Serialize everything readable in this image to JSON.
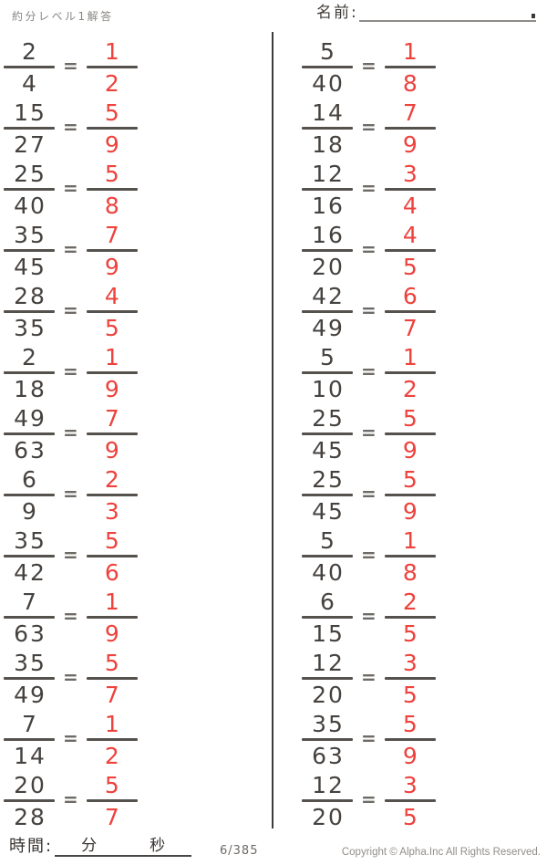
{
  "header": {
    "title": "約分レベル1解答",
    "name_label": "名前:"
  },
  "equals_sign": "=",
  "problems": {
    "left": [
      {
        "numerator": "2",
        "denominator": "4",
        "answer_numerator": "1",
        "answer_denominator": "2"
      },
      {
        "numerator": "15",
        "denominator": "27",
        "answer_numerator": "5",
        "answer_denominator": "9"
      },
      {
        "numerator": "25",
        "denominator": "40",
        "answer_numerator": "5",
        "answer_denominator": "8"
      },
      {
        "numerator": "35",
        "denominator": "45",
        "answer_numerator": "7",
        "answer_denominator": "9"
      },
      {
        "numerator": "28",
        "denominator": "35",
        "answer_numerator": "4",
        "answer_denominator": "5"
      },
      {
        "numerator": "2",
        "denominator": "18",
        "answer_numerator": "1",
        "answer_denominator": "9"
      },
      {
        "numerator": "49",
        "denominator": "63",
        "answer_numerator": "7",
        "answer_denominator": "9"
      },
      {
        "numerator": "6",
        "denominator": "9",
        "answer_numerator": "2",
        "answer_denominator": "3"
      },
      {
        "numerator": "35",
        "denominator": "42",
        "answer_numerator": "5",
        "answer_denominator": "6"
      },
      {
        "numerator": "7",
        "denominator": "63",
        "answer_numerator": "1",
        "answer_denominator": "9"
      },
      {
        "numerator": "35",
        "denominator": "49",
        "answer_numerator": "5",
        "answer_denominator": "7"
      },
      {
        "numerator": "7",
        "denominator": "14",
        "answer_numerator": "1",
        "answer_denominator": "2"
      },
      {
        "numerator": "20",
        "denominator": "28",
        "answer_numerator": "5",
        "answer_denominator": "7"
      }
    ],
    "right": [
      {
        "numerator": "5",
        "denominator": "40",
        "answer_numerator": "1",
        "answer_denominator": "8"
      },
      {
        "numerator": "14",
        "denominator": "18",
        "answer_numerator": "7",
        "answer_denominator": "9"
      },
      {
        "numerator": "12",
        "denominator": "16",
        "answer_numerator": "3",
        "answer_denominator": "4"
      },
      {
        "numerator": "16",
        "denominator": "20",
        "answer_numerator": "4",
        "answer_denominator": "5"
      },
      {
        "numerator": "42",
        "denominator": "49",
        "answer_numerator": "6",
        "answer_denominator": "7"
      },
      {
        "numerator": "5",
        "denominator": "10",
        "answer_numerator": "1",
        "answer_denominator": "2"
      },
      {
        "numerator": "25",
        "denominator": "45",
        "answer_numerator": "5",
        "answer_denominator": "9"
      },
      {
        "numerator": "25",
        "denominator": "45",
        "answer_numerator": "5",
        "answer_denominator": "9"
      },
      {
        "numerator": "5",
        "denominator": "40",
        "answer_numerator": "1",
        "answer_denominator": "8"
      },
      {
        "numerator": "6",
        "denominator": "15",
        "answer_numerator": "2",
        "answer_denominator": "5"
      },
      {
        "numerator": "12",
        "denominator": "20",
        "answer_numerator": "3",
        "answer_denominator": "5"
      },
      {
        "numerator": "35",
        "denominator": "63",
        "answer_numerator": "5",
        "answer_denominator": "9"
      },
      {
        "numerator": "12",
        "denominator": "20",
        "answer_numerator": "3",
        "answer_denominator": "5"
      }
    ]
  },
  "footer": {
    "time_label": "時間:",
    "minutes_label": "分",
    "seconds_label": "秒",
    "page_number": "6/385",
    "copyright": "Copyright ©  Alpha.Inc All Rights Reserved."
  },
  "colors": {
    "answer_red": "#ee423d",
    "ink": "#46423f",
    "bar": "#55514d"
  }
}
